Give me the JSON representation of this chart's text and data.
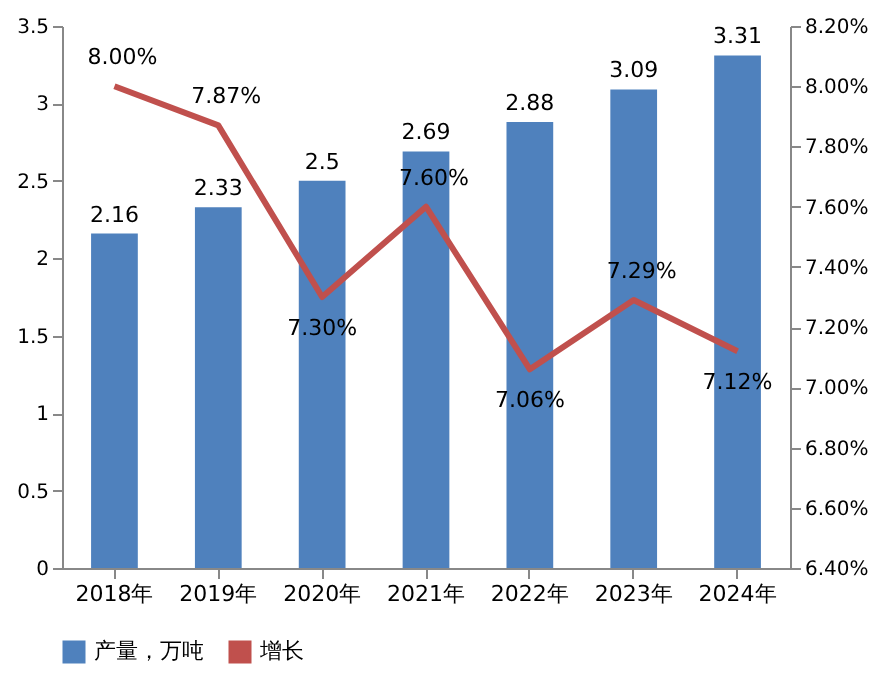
{
  "chart_data": {
    "type": "bar",
    "categories": [
      "2018年",
      "2019年",
      "2020年",
      "2021年",
      "2022年",
      "2023年",
      "2024年"
    ],
    "series": [
      {
        "name": "产量，万吨",
        "color": "#4f81bd",
        "values": [
          2.16,
          2.33,
          2.5,
          2.69,
          2.88,
          3.09,
          3.31
        ],
        "value_labels": [
          "2.16",
          "2.33",
          "2.5",
          "2.69",
          "2.88",
          "3.09",
          "3.31"
        ]
      },
      {
        "name": "增长",
        "type": "line",
        "axis": "y2",
        "color": "#c0504d",
        "values": [
          8.0,
          7.87,
          7.3,
          7.6,
          7.06,
          7.29,
          7.12
        ],
        "value_labels": [
          "8.00%",
          "7.87%",
          "7.30%",
          "7.60%",
          "7.06%",
          "7.29%",
          "7.12%"
        ]
      }
    ],
    "ylim": [
      0,
      3.5
    ],
    "yticks": [
      0,
      0.5,
      1,
      1.5,
      2,
      2.5,
      3,
      3.5
    ],
    "y2lim": [
      6.4,
      8.2
    ],
    "y2ticks": [
      {
        "value": 6.4,
        "label": "6.40%"
      },
      {
        "value": 6.6,
        "label": "6.60%"
      },
      {
        "value": 6.8,
        "label": "6.80%"
      },
      {
        "value": 7.0,
        "label": "7.00%"
      },
      {
        "value": 7.2,
        "label": "7.20%"
      },
      {
        "value": 7.4,
        "label": "7.40%"
      },
      {
        "value": 7.6,
        "label": "7.60%"
      },
      {
        "value": 7.8,
        "label": "7.80%"
      },
      {
        "value": 8.0,
        "label": "8.00%"
      },
      {
        "value": 8.2,
        "label": "8.20%"
      }
    ],
    "grid": false,
    "legend": "bottom",
    "marker": "none",
    "line_style": "solid"
  }
}
